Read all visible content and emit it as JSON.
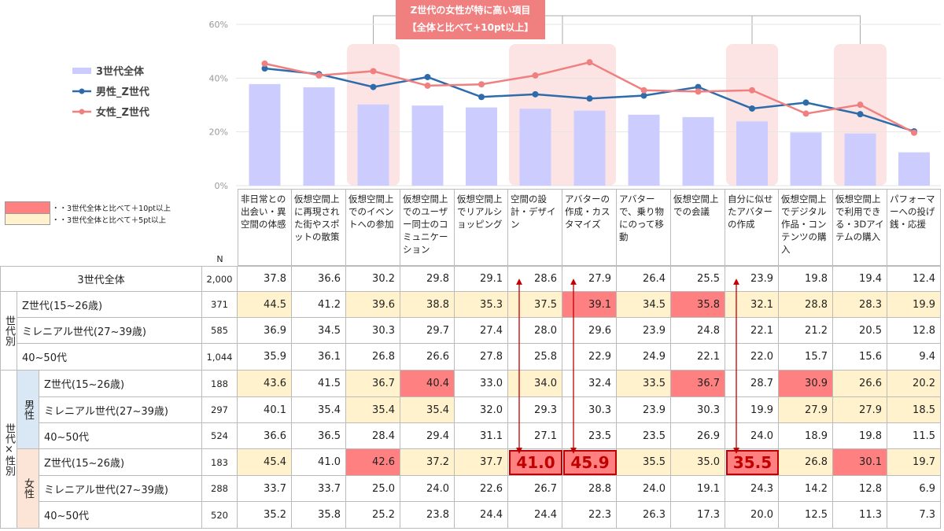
{
  "chart_data": {
    "type": "bar+line",
    "ylim": [
      0,
      60
    ],
    "yticks": [
      "0%",
      "20%",
      "40%",
      "60%"
    ],
    "categories": [
      "非日常との出会い・異空間の体感",
      "仮想空間上に再現された街やスポットの散策",
      "仮想空間上でのイベントへの参加",
      "仮想空間上でのユーザー同士のコミュニケーション",
      "仮想空間上でリアルショッピング",
      "空間の設計・デザイン",
      "アバターの作成・カスタマイズ",
      "アバターで、乗り物にのって移動",
      "仮想空間上での会議",
      "自分に似せたアバターの作成",
      "仮想空間上でデジタル作品・コンテンツの購入",
      "仮想空間上で利用できる・3Dアイテムの購入",
      "パフォーマーへの投げ銭・応援"
    ],
    "series": [
      {
        "name": "3世代全体",
        "type": "bar",
        "color": "#ccccff",
        "values": [
          37.8,
          36.6,
          30.2,
          29.8,
          29.1,
          28.6,
          27.9,
          26.4,
          25.5,
          23.9,
          19.8,
          19.4,
          12.4
        ]
      },
      {
        "name": "男性_Z世代",
        "type": "line",
        "color": "#2e6bab",
        "values": [
          43.6,
          41.5,
          36.7,
          40.4,
          33.0,
          34.0,
          32.4,
          33.5,
          36.7,
          28.7,
          30.9,
          26.6,
          20.2
        ]
      },
      {
        "name": "女性_Z世代",
        "type": "line",
        "color": "#f08080",
        "values": [
          45.4,
          41.0,
          42.6,
          37.2,
          37.7,
          41.0,
          45.9,
          35.5,
          35.0,
          35.5,
          26.8,
          30.1,
          19.7
        ]
      }
    ],
    "highlighted_categories": [
      2,
      5,
      6,
      9,
      11
    ],
    "annotation": {
      "line1": "Z世代の女性が特に高い項目",
      "line2": "【全体と比べて+10pt以上】"
    }
  },
  "key": {
    "r10": "・・3世代全体と比べて＋10pt以上",
    "y5": "・・3世代全体と比べて＋5pt以上"
  },
  "table": {
    "headers": [
      "非日常との出会い・異空間の体感",
      "仮想空間上に再現された街やスポットの散策",
      "仮想空間上でのイベントへの参加",
      "仮想空間上でのユーザー同士のコミュニケーション",
      "仮想空間上でリアルショッピング",
      "空間の設計・デザイン",
      "アバターの作成・カスタマイズ",
      "アバターで、乗り物にのって移動",
      "仮想空間上での会議",
      "自分に似せたアバターの作成",
      "仮想空間上でデジタル作品・コンテンツの購入",
      "仮想空間上で利用できる・3Dアイテムの購入",
      "パフォーマーへの投げ銭・応援"
    ],
    "n_header": "N",
    "group_gen": "世代別",
    "group_gen_sex": "世代×性別",
    "male": "男性",
    "female": "女性",
    "rows": [
      {
        "label": "3世代全体",
        "n": "2,000",
        "values": [
          37.8,
          36.6,
          30.2,
          29.8,
          29.1,
          28.6,
          27.9,
          26.4,
          25.5,
          23.9,
          19.8,
          19.4,
          12.4
        ]
      },
      {
        "label": "Z世代(15~26歳)",
        "n": "371",
        "values": [
          44.5,
          41.2,
          39.6,
          38.8,
          35.3,
          37.5,
          39.1,
          34.5,
          35.8,
          32.1,
          28.8,
          28.3,
          19.9
        ]
      },
      {
        "label": "ミレニアル世代(27~39歳)",
        "n": "585",
        "values": [
          36.9,
          34.5,
          30.3,
          29.7,
          27.4,
          28.0,
          29.6,
          23.9,
          24.8,
          22.1,
          21.2,
          20.5,
          12.8
        ]
      },
      {
        "label": "40~50代",
        "n": "1,044",
        "values": [
          35.9,
          36.1,
          26.8,
          26.6,
          27.8,
          25.8,
          22.9,
          24.9,
          22.1,
          22.0,
          15.7,
          15.6,
          9.4
        ]
      },
      {
        "label": "Z世代(15~26歳)",
        "n": "188",
        "values": [
          43.6,
          41.5,
          36.7,
          40.4,
          33.0,
          34.0,
          32.4,
          33.5,
          36.7,
          28.7,
          30.9,
          26.6,
          20.2
        ]
      },
      {
        "label": "ミレニアル世代(27~39歳)",
        "n": "297",
        "values": [
          40.1,
          35.4,
          35.4,
          35.4,
          32.0,
          29.3,
          30.3,
          23.9,
          30.3,
          19.9,
          27.9,
          27.9,
          18.5
        ]
      },
      {
        "label": "40~50代",
        "n": "524",
        "values": [
          36.6,
          36.5,
          28.4,
          29.4,
          31.1,
          27.1,
          23.5,
          23.5,
          26.9,
          24.0,
          18.9,
          19.8,
          11.5
        ]
      },
      {
        "label": "Z世代(15~26歳)",
        "n": "183",
        "values": [
          45.4,
          41.0,
          42.6,
          37.2,
          37.7,
          41.0,
          45.9,
          35.5,
          35.0,
          35.5,
          26.8,
          30.1,
          19.7
        ]
      },
      {
        "label": "ミレニアル世代(27~39歳)",
        "n": "288",
        "values": [
          33.7,
          33.7,
          25.0,
          24.0,
          22.6,
          26.7,
          28.8,
          24.0,
          19.1,
          24.3,
          14.2,
          12.8,
          6.9
        ]
      },
      {
        "label": "40~50代",
        "n": "520",
        "values": [
          35.2,
          35.8,
          25.2,
          23.8,
          24.4,
          24.4,
          22.3,
          26.3,
          17.3,
          20.0,
          12.5,
          11.3,
          7.3
        ]
      }
    ],
    "emphasized": {
      "row": 7,
      "cols": [
        5,
        6,
        9
      ]
    }
  }
}
